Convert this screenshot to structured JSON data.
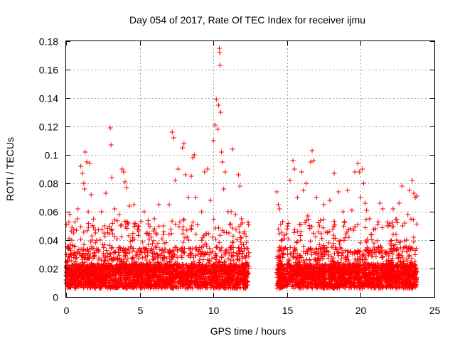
{
  "chart_data": {
    "type": "scatter",
    "title": "Day 054 of 2017, Rate Of TEC Index for receiver ijmu",
    "xlabel": "GPS time / hours",
    "ylabel": "ROTI / TECUs",
    "xlim": [
      0,
      25
    ],
    "ylim": [
      0,
      0.18
    ],
    "xticks": [
      "0",
      "5",
      "10",
      "15",
      "20",
      "25"
    ],
    "yticks": [
      "0",
      "0.02",
      "0.04",
      "0.06",
      "0.08",
      "0.1",
      "0.12",
      "0.14",
      "0.16",
      "0.18"
    ],
    "marker": "+",
    "color": "#ff0000",
    "grid": true,
    "series": [
      {
        "name": "ROTI",
        "points": [
          [
            0.1,
            0.026
          ],
          [
            0.2,
            0.041
          ],
          [
            0.25,
            0.058
          ],
          [
            0.3,
            0.03
          ],
          [
            0.4,
            0.049
          ],
          [
            0.5,
            0.045
          ],
          [
            0.7,
            0.047
          ],
          [
            0.8,
            0.062
          ],
          [
            1.0,
            0.092
          ],
          [
            1.1,
            0.087
          ],
          [
            1.2,
            0.08
          ],
          [
            1.25,
            0.076
          ],
          [
            1.3,
            0.102
          ],
          [
            1.4,
            0.095
          ],
          [
            1.5,
            0.06
          ],
          [
            1.6,
            0.094
          ],
          [
            1.7,
            0.072
          ],
          [
            2.0,
            0.045
          ],
          [
            2.4,
            0.06
          ],
          [
            2.6,
            0.05
          ],
          [
            2.7,
            0.073
          ],
          [
            3.0,
            0.119
          ],
          [
            3.05,
            0.107
          ],
          [
            3.1,
            0.084
          ],
          [
            3.3,
            0.062
          ],
          [
            3.6,
            0.058
          ],
          [
            3.8,
            0.09
          ],
          [
            3.9,
            0.088
          ],
          [
            4.0,
            0.081
          ],
          [
            4.1,
            0.077
          ],
          [
            4.3,
            0.064
          ],
          [
            4.6,
            0.065
          ],
          [
            4.9,
            0.05
          ],
          [
            5.3,
            0.06
          ],
          [
            5.5,
            0.045
          ],
          [
            6.0,
            0.048
          ],
          [
            6.3,
            0.065
          ],
          [
            6.6,
            0.05
          ],
          [
            7.0,
            0.065
          ],
          [
            7.2,
            0.116
          ],
          [
            7.3,
            0.112
          ],
          [
            7.4,
            0.082
          ],
          [
            7.6,
            0.09
          ],
          [
            7.9,
            0.105
          ],
          [
            8.0,
            0.108
          ],
          [
            8.1,
            0.086
          ],
          [
            8.3,
            0.07
          ],
          [
            8.5,
            0.085
          ],
          [
            8.6,
            0.098
          ],
          [
            8.7,
            0.1
          ],
          [
            8.8,
            0.07
          ],
          [
            9.2,
            0.06
          ],
          [
            9.4,
            0.088
          ],
          [
            9.6,
            0.09
          ],
          [
            9.8,
            0.068
          ],
          [
            10.0,
            0.11
          ],
          [
            10.1,
            0.121
          ],
          [
            10.2,
            0.139
          ],
          [
            10.3,
            0.118
          ],
          [
            10.35,
            0.135
          ],
          [
            10.4,
            0.175
          ],
          [
            10.42,
            0.172
          ],
          [
            10.45,
            0.163
          ],
          [
            10.5,
            0.13
          ],
          [
            10.55,
            0.102
          ],
          [
            10.6,
            0.095
          ],
          [
            10.7,
            0.076
          ],
          [
            10.8,
            0.088
          ],
          [
            11.0,
            0.06
          ],
          [
            11.2,
            0.06
          ],
          [
            11.3,
            0.104
          ],
          [
            11.5,
            0.058
          ],
          [
            11.7,
            0.086
          ],
          [
            11.8,
            0.078
          ],
          [
            11.9,
            0.055
          ],
          [
            12.1,
            0.046
          ],
          [
            14.3,
            0.074
          ],
          [
            14.4,
            0.065
          ],
          [
            14.5,
            0.062
          ],
          [
            14.7,
            0.053
          ],
          [
            15.2,
            0.082
          ],
          [
            15.4,
            0.096
          ],
          [
            15.5,
            0.09
          ],
          [
            15.7,
            0.07
          ],
          [
            16.0,
            0.088
          ],
          [
            16.1,
            0.075
          ],
          [
            16.3,
            0.08
          ],
          [
            16.4,
            0.057
          ],
          [
            16.6,
            0.095
          ],
          [
            16.7,
            0.103
          ],
          [
            16.8,
            0.096
          ],
          [
            17.0,
            0.07
          ],
          [
            17.2,
            0.05
          ],
          [
            17.5,
            0.065
          ],
          [
            17.9,
            0.068
          ],
          [
            18.2,
            0.087
          ],
          [
            18.5,
            0.074
          ],
          [
            18.8,
            0.06
          ],
          [
            19.1,
            0.075
          ],
          [
            19.4,
            0.061
          ],
          [
            19.6,
            0.088
          ],
          [
            19.8,
            0.094
          ],
          [
            19.9,
            0.088
          ],
          [
            20.0,
            0.07
          ],
          [
            20.1,
            0.09
          ],
          [
            20.2,
            0.08
          ],
          [
            20.3,
            0.066
          ],
          [
            20.4,
            0.061
          ],
          [
            20.6,
            0.055
          ],
          [
            21.0,
            0.048
          ],
          [
            21.3,
            0.066
          ],
          [
            21.5,
            0.062
          ],
          [
            21.8,
            0.05
          ],
          [
            22.2,
            0.062
          ],
          [
            22.6,
            0.066
          ],
          [
            22.8,
            0.078
          ],
          [
            23.0,
            0.052
          ],
          [
            23.2,
            0.058
          ],
          [
            23.3,
            0.075
          ],
          [
            23.5,
            0.082
          ],
          [
            23.6,
            0.073
          ],
          [
            23.7,
            0.07
          ],
          [
            23.8,
            0.071
          ]
        ],
        "dense_bands": [
          {
            "x_range": [
              0.0,
              12.4
            ],
            "y_range": [
              0.004,
              0.04
            ]
          },
          {
            "x_range": [
              14.3,
              23.8
            ],
            "y_range": [
              0.004,
              0.04
            ]
          }
        ]
      }
    ]
  }
}
